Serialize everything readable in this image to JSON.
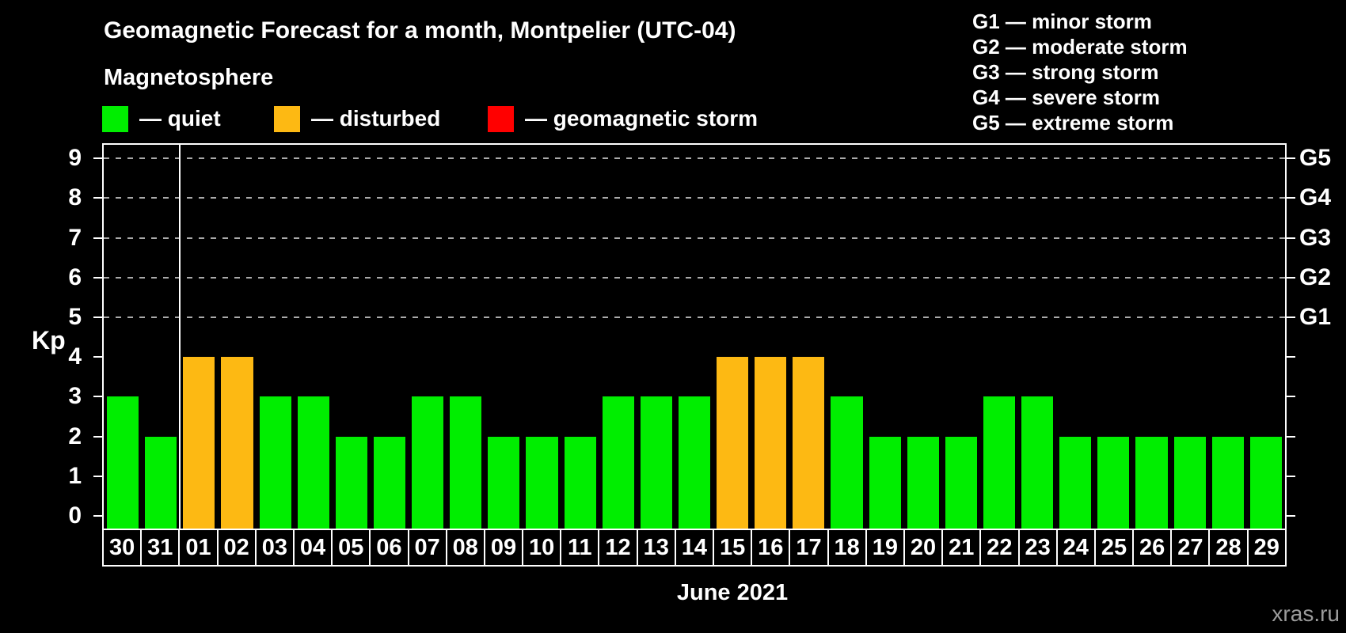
{
  "header": {
    "title": "Geomagnetic Forecast for a month, Montpelier (UTC-04)",
    "subtitle": "Magnetosphere",
    "legend": [
      {
        "key": "quiet",
        "label": "— quiet",
        "color": "#00EE00"
      },
      {
        "key": "disturbed",
        "label": "— disturbed",
        "color": "#FDB913"
      },
      {
        "key": "storm",
        "label": "— geomagnetic storm",
        "color": "#FF0000"
      }
    ],
    "storm_scale": [
      "G1 — minor storm",
      "G2 — moderate storm",
      "G3 — strong storm",
      "G4 — severe storm",
      "G5 — extreme storm"
    ]
  },
  "chart_data": {
    "type": "bar",
    "title": "Geomagnetic Forecast for a month, Montpelier (UTC-04)",
    "subtitle": "Magnetosphere",
    "ylabel": "Kp",
    "xlabel": "June 2021",
    "ylim": [
      0,
      9
    ],
    "yticks": [
      0,
      1,
      2,
      3,
      4,
      5,
      6,
      7,
      8,
      9
    ],
    "gridlines_at": [
      5,
      6,
      7,
      8,
      9
    ],
    "grid": "dashed-horizontal",
    "legend_position": "top",
    "right_axis_labels": [
      {
        "label": "G1",
        "kp": 5
      },
      {
        "label": "G2",
        "kp": 6
      },
      {
        "label": "G3",
        "kp": 7
      },
      {
        "label": "G4",
        "kp": 8
      },
      {
        "label": "G5",
        "kp": 9
      }
    ],
    "categories": [
      "30",
      "31",
      "01",
      "02",
      "03",
      "04",
      "05",
      "06",
      "07",
      "08",
      "09",
      "10",
      "11",
      "12",
      "13",
      "14",
      "15",
      "16",
      "17",
      "18",
      "19",
      "20",
      "21",
      "22",
      "23",
      "24",
      "25",
      "26",
      "27",
      "28",
      "29"
    ],
    "series": [
      {
        "name": "Kp forecast",
        "values": [
          3,
          2,
          4,
          4,
          3,
          3,
          2,
          2,
          3,
          3,
          2,
          2,
          2,
          3,
          3,
          3,
          4,
          4,
          4,
          3,
          2,
          2,
          2,
          3,
          3,
          2,
          2,
          2,
          2,
          2,
          2
        ],
        "status": [
          "quiet",
          "quiet",
          "disturbed",
          "disturbed",
          "quiet",
          "quiet",
          "quiet",
          "quiet",
          "quiet",
          "quiet",
          "quiet",
          "quiet",
          "quiet",
          "quiet",
          "quiet",
          "quiet",
          "disturbed",
          "disturbed",
          "disturbed",
          "quiet",
          "quiet",
          "quiet",
          "quiet",
          "quiet",
          "quiet",
          "quiet",
          "quiet",
          "quiet",
          "quiet",
          "quiet",
          "quiet"
        ]
      }
    ],
    "month_separator_index": 2,
    "colors": {
      "quiet": "#00EE00",
      "disturbed": "#FDB913",
      "storm": "#FF0000"
    }
  },
  "watermark": "xras.ru"
}
